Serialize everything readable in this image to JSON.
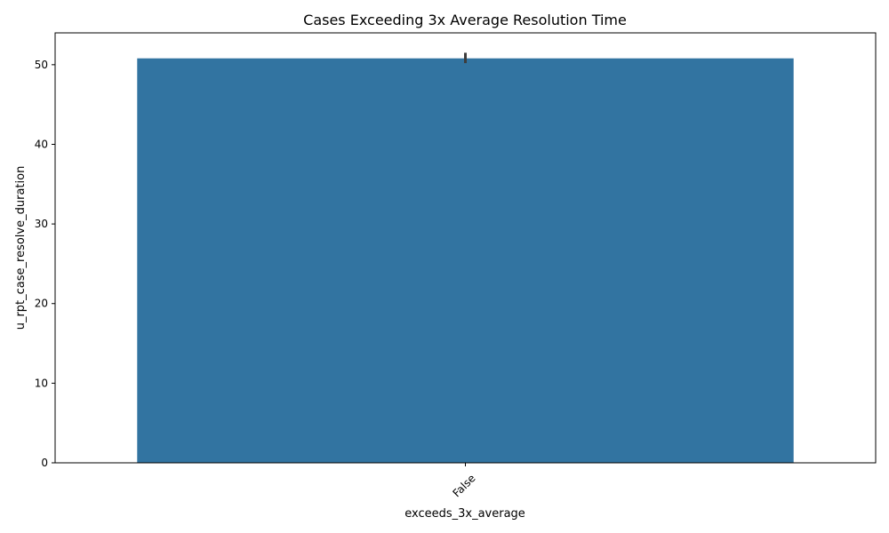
{
  "chart_data": {
    "type": "bar",
    "title": "Cases Exceeding 3x Average Resolution Time",
    "xlabel": "exceeds_3x_average",
    "ylabel": "u_rpt_case_resolve_duration",
    "categories": [
      "False"
    ],
    "values": [
      50.8
    ],
    "error_bars": [
      [
        50.2,
        51.5
      ]
    ],
    "ylim": [
      0,
      54
    ],
    "yticks": [
      0,
      10,
      20,
      30,
      40,
      50
    ],
    "grid": false,
    "legend": "none",
    "colors": {
      "bar": "#3274a1",
      "error_bar": "#3d3d3d",
      "axis": "#000000"
    }
  }
}
